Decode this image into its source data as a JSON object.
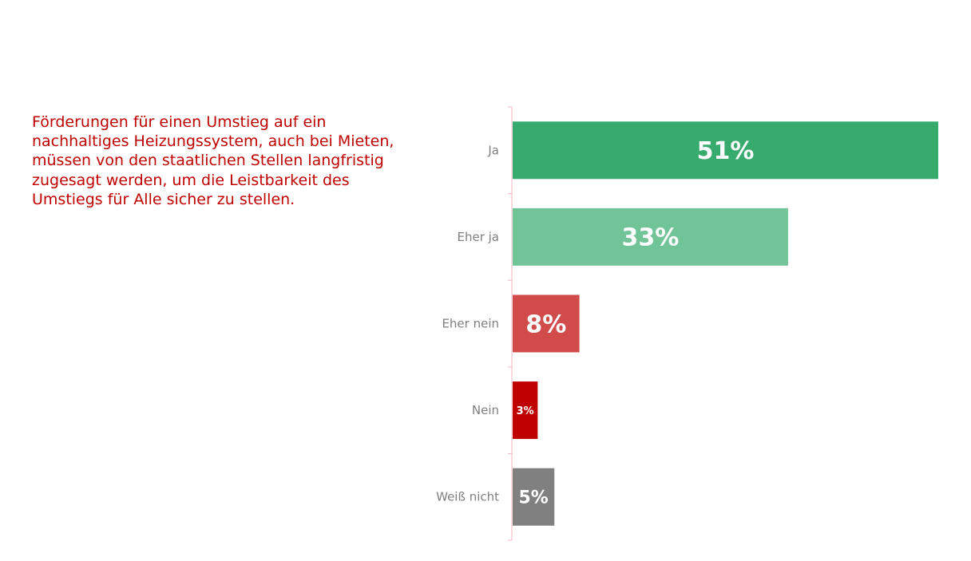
{
  "statement": "Förderungen für einen Umstieg auf ein nachhaltiges Heizungssystem, auch bei Mieten, müssen von den staatlichen Stellen langfristig zugesagt werden, um die Leistbarkeit des Umstiegs für Alle sicher zu stellen.",
  "chart_data": {
    "type": "bar",
    "orientation": "horizontal",
    "categories": [
      "Ja",
      "Eher ja",
      "Eher nein",
      "Nein",
      "Weiß nicht"
    ],
    "values": [
      51,
      33,
      8,
      3,
      5
    ],
    "value_labels": [
      "51%",
      "33%",
      "8%",
      "3%",
      "5%"
    ],
    "colors": [
      "#37ab6e",
      "#70c497",
      "#d24b4b",
      "#c00000",
      "#808080"
    ],
    "axis_color": "#f4b6c2",
    "xlim": [
      0,
      51
    ],
    "grid": false,
    "legend": "none"
  }
}
